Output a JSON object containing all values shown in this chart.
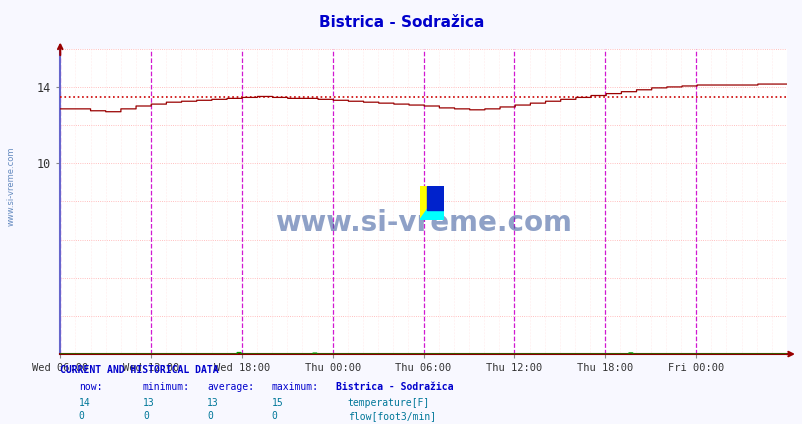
{
  "title": "Bistrica - Sodražica",
  "title_color": "#0000cc",
  "bg_color": "#f8f8ff",
  "plot_bg_color": "#ffffff",
  "grid_color_h": "#ffaaaa",
  "grid_color_v": "#ffcccc",
  "x_labels": [
    "Wed 06:00",
    "Wed 12:00",
    "Wed 18:00",
    "Thu 00:00",
    "Thu 06:00",
    "Thu 12:00",
    "Thu 18:00",
    "Fri 00:00"
  ],
  "x_ticks_norm": [
    0.0,
    0.125,
    0.25,
    0.375,
    0.5,
    0.625,
    0.75,
    0.875
  ],
  "total_points": 576,
  "ylim_min": 0,
  "ylim_max": 16,
  "temp_color": "#990000",
  "flow_color": "#009900",
  "avg_color": "#cc0000",
  "avg_value": 13.48,
  "left_border_color": "#6666cc",
  "bottom_border_color": "#880000",
  "magenta_color": "#cc00cc",
  "watermark": "www.si-vreme.com",
  "watermark_color": "#335599",
  "side_text_color": "#3366aa",
  "table_cyan_color": "#007799",
  "temp_now": 14,
  "temp_min": 13,
  "temp_avg": 13,
  "temp_max": 15,
  "flow_now": 0,
  "flow_min": 0,
  "flow_avg": 0,
  "flow_max": 0
}
